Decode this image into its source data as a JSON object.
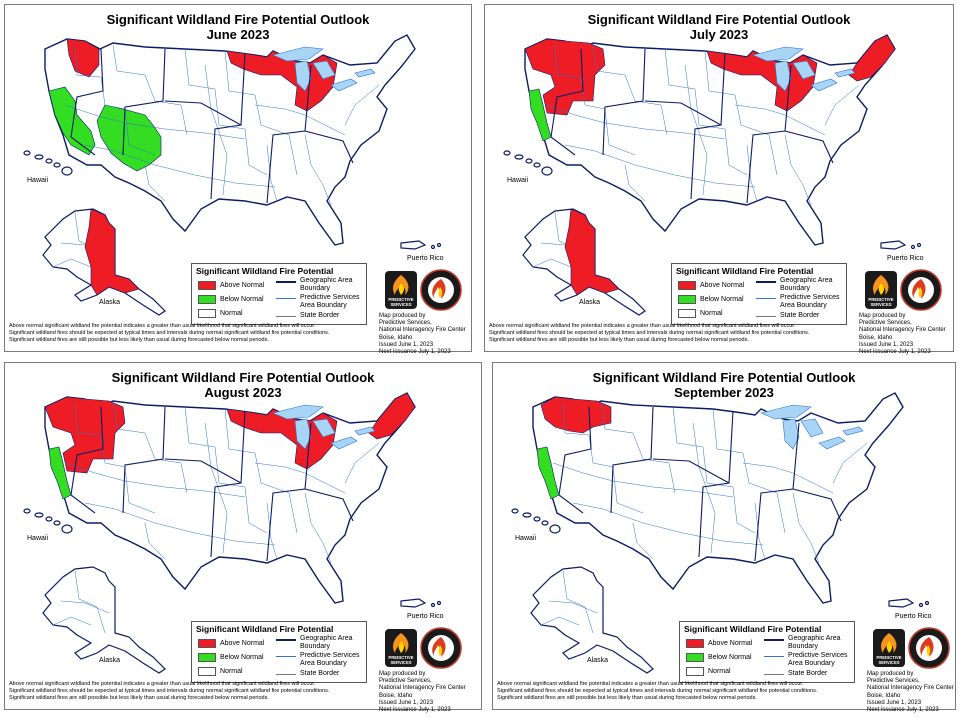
{
  "panels": [
    {
      "title_line1": "Significant Wildland Fire Potential Outlook",
      "title_line2": "June 2023",
      "above": [
        "pnw-small",
        "upper-mw",
        "alaska"
      ],
      "below": [
        "ca-coast",
        "southwest"
      ]
    },
    {
      "title_line1": "Significant Wildland Fire Potential Outlook",
      "title_line2": "July 2023",
      "above": [
        "pnw-large",
        "upper-mw",
        "alaska",
        "new-england"
      ],
      "below": [
        "ca-coast-small"
      ]
    },
    {
      "title_line1": "Significant Wildland Fire Potential Outlook",
      "title_line2": "August 2023",
      "above": [
        "pnw-large",
        "upper-mw",
        "new-england"
      ],
      "below": [
        "ca-coast-small"
      ]
    },
    {
      "title_line1": "Significant Wildland Fire Potential Outlook",
      "title_line2": "September 2023",
      "above": [
        "pnw-north"
      ],
      "below": [
        "ca-coast-small"
      ]
    }
  ],
  "labels": {
    "hawaii": "Hawaii",
    "alaska": "Alaska",
    "puerto_rico": "Puerto Rico"
  },
  "legend": {
    "title": "Significant Wildland Fire Potential",
    "above": "Above Normal",
    "below": "Below Normal",
    "normal": "Normal",
    "ga_boundary": "Geographic Area Boundary",
    "ps_boundary": "Predictive Services Area Boundary",
    "state_border": "State Border"
  },
  "credit": "Map produced by\nPredictive Services,\nNational Interagency Fire Center\nBoise, Idaho\nIssued June 1, 2023\nNext issuance July 1, 2023",
  "logo": {
    "ps_text": "PREDICTIVE\nSERVICES",
    "icon": "flame-logo-icon",
    "ring_icon": "nifc-seal-icon"
  },
  "footer": [
    "Above normal significant wildland fire potential indicates a greater than usual likelihood that significant wildland fires will occur.",
    "Significant wildland fires should be expected at typical times and intervals during normal significant wildland fire potential conditions.",
    "Significant wildland fires are still possible but less likely than usual during forecasted below normal periods."
  ],
  "colors": {
    "above": "#ee1c24",
    "below": "#33dd22",
    "normal": "#ffffff",
    "water": "#a8d4f5",
    "ga_line": "#0b1c66",
    "ps_line": "#2e74d0"
  }
}
